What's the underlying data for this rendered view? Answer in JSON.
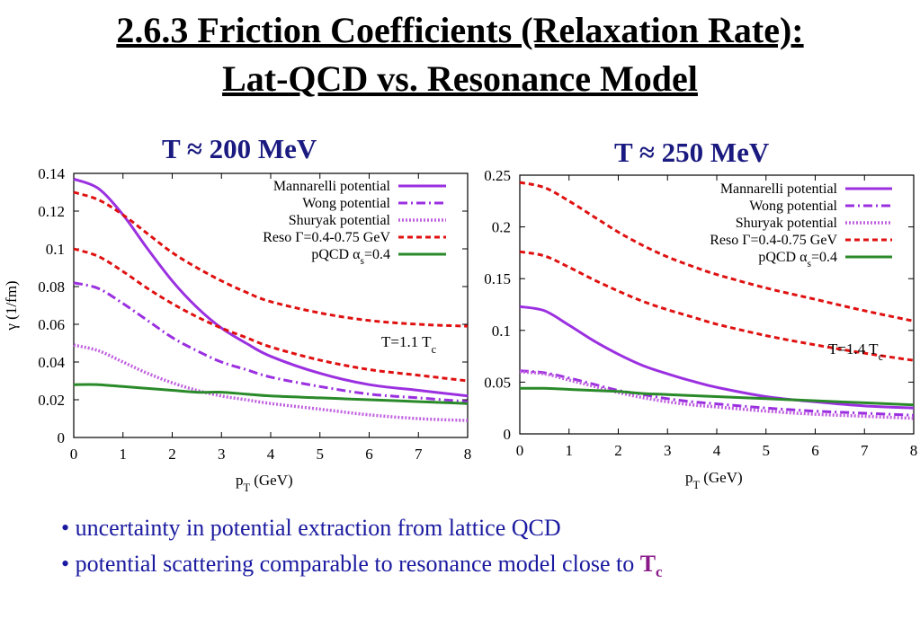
{
  "title": {
    "line1": "2.6.3 Friction Coefficients (Relaxation Rate):",
    "line2": "Lat-QCD vs. Resonance Model"
  },
  "bullets": [
    {
      "text": "• uncertainty in potential extraction from lattice QCD"
    },
    {
      "text": "• potential scattering comparable to resonance model close to ",
      "tail_main": "T",
      "tail_sub": "c"
    }
  ],
  "legend_labels": [
    {
      "main": "Mannarelli potential",
      "sub": "",
      "after": ""
    },
    {
      "main": "Wong potential",
      "sub": "",
      "after": ""
    },
    {
      "main": "Shuryak potential",
      "sub": "",
      "after": ""
    },
    {
      "main": "Reso Γ=0.4-0.75 GeV",
      "sub": "",
      "after": ""
    },
    {
      "main": "pQCD α",
      "sub": "s",
      "after": "=0.4"
    }
  ],
  "styles": {
    "Mannarelli potential": {
      "color": "#9b30e0",
      "dash": "",
      "width": 3
    },
    "Wong potential": {
      "color": "#9b30e0",
      "dash": "10,4,2,4",
      "width": 3
    },
    "Shuryak potential": {
      "color": "#c060e0",
      "dash": "2,2",
      "width": 3.5
    },
    "Reso": {
      "color": "#e01010",
      "dash": "6,4",
      "width": 3
    },
    "pQCD": {
      "color": "#2a8a2a",
      "dash": "",
      "width": 3
    }
  },
  "chart_data": [
    {
      "type": "line",
      "panel_label": "T ≈ 200 MeV",
      "annotation": {
        "main": "T=1.1 T",
        "sub": "c"
      },
      "xlabel": {
        "main": "p",
        "sub": "T",
        "after": " (GeV)"
      },
      "ylabel": "γ (1/fm)",
      "xlim": [
        0,
        8
      ],
      "ylim": [
        0,
        0.14
      ],
      "xticks": [
        0,
        1,
        2,
        3,
        4,
        5,
        6,
        7,
        8
      ],
      "xtick_labels": [
        "0",
        "1",
        "2",
        "3",
        "4",
        "5",
        "6",
        "7",
        "8"
      ],
      "yticks": [
        0,
        0.02,
        0.04,
        0.06,
        0.08,
        0.1,
        0.12,
        0.14
      ],
      "ytick_labels": [
        "0",
        "0.02",
        "0.04",
        "0.06",
        "0.08",
        "0.1",
        "0.12",
        "0.14"
      ],
      "x": [
        0,
        0.5,
        1,
        1.5,
        2,
        2.5,
        3,
        3.5,
        4,
        5,
        6,
        7,
        8
      ],
      "series": [
        {
          "style": "Mannarelli potential",
          "values": [
            0.137,
            0.132,
            0.118,
            0.1,
            0.083,
            0.069,
            0.058,
            0.05,
            0.043,
            0.034,
            0.028,
            0.025,
            0.022
          ]
        },
        {
          "style": "Wong potential",
          "values": [
            0.082,
            0.079,
            0.071,
            0.062,
            0.053,
            0.046,
            0.04,
            0.036,
            0.032,
            0.027,
            0.023,
            0.021,
            0.019
          ]
        },
        {
          "style": "Shuryak potential",
          "values": [
            0.049,
            0.046,
            0.04,
            0.034,
            0.029,
            0.025,
            0.022,
            0.02,
            0.018,
            0.015,
            0.012,
            0.01,
            0.009
          ]
        },
        {
          "style": "Reso",
          "values": [
            0.13,
            0.126,
            0.118,
            0.108,
            0.098,
            0.09,
            0.083,
            0.077,
            0.072,
            0.066,
            0.062,
            0.06,
            0.059
          ]
        },
        {
          "style": "Reso",
          "values": [
            0.1,
            0.096,
            0.088,
            0.079,
            0.071,
            0.064,
            0.058,
            0.053,
            0.048,
            0.041,
            0.036,
            0.033,
            0.03
          ]
        },
        {
          "style": "pQCD",
          "values": [
            0.028,
            0.028,
            0.027,
            0.026,
            0.025,
            0.024,
            0.024,
            0.023,
            0.022,
            0.021,
            0.02,
            0.019,
            0.018
          ]
        }
      ]
    },
    {
      "type": "line",
      "panel_label": "T ≈ 250 MeV",
      "annotation": {
        "main": "T=1.4 T",
        "sub": "c"
      },
      "xlabel": {
        "main": "p",
        "sub": "T",
        "after": " (GeV)"
      },
      "ylabel": "",
      "xlim": [
        0,
        8
      ],
      "ylim": [
        0,
        0.25
      ],
      "xticks": [
        0,
        1,
        2,
        3,
        4,
        5,
        6,
        7,
        8
      ],
      "xtick_labels": [
        "0",
        "1",
        "2",
        "3",
        "4",
        "5",
        "6",
        "7",
        "8"
      ],
      "yticks": [
        0,
        0.05,
        0.1,
        0.15,
        0.2,
        0.25
      ],
      "ytick_labels": [
        "0",
        "0.05",
        "0.1",
        "0.15",
        "0.2",
        "0.25"
      ],
      "x": [
        0,
        0.5,
        1,
        1.5,
        2,
        2.5,
        3,
        3.5,
        4,
        5,
        6,
        7,
        8
      ],
      "series": [
        {
          "style": "Mannarelli potential",
          "values": [
            0.123,
            0.119,
            0.105,
            0.09,
            0.077,
            0.066,
            0.058,
            0.051,
            0.045,
            0.036,
            0.031,
            0.027,
            0.025
          ]
        },
        {
          "style": "Wong potential",
          "values": [
            0.061,
            0.059,
            0.054,
            0.048,
            0.042,
            0.038,
            0.034,
            0.031,
            0.029,
            0.025,
            0.022,
            0.02,
            0.018
          ]
        },
        {
          "style": "Shuryak potential",
          "values": [
            0.06,
            0.058,
            0.052,
            0.046,
            0.04,
            0.035,
            0.031,
            0.028,
            0.026,
            0.022,
            0.019,
            0.017,
            0.015
          ]
        },
        {
          "style": "Reso",
          "values": [
            0.243,
            0.238,
            0.225,
            0.21,
            0.195,
            0.182,
            0.171,
            0.162,
            0.154,
            0.141,
            0.13,
            0.119,
            0.109
          ]
        },
        {
          "style": "Reso",
          "values": [
            0.176,
            0.172,
            0.161,
            0.149,
            0.138,
            0.128,
            0.12,
            0.113,
            0.106,
            0.095,
            0.086,
            0.078,
            0.071
          ]
        },
        {
          "style": "pQCD",
          "values": [
            0.044,
            0.044,
            0.043,
            0.042,
            0.041,
            0.039,
            0.038,
            0.037,
            0.036,
            0.034,
            0.032,
            0.03,
            0.028
          ]
        }
      ]
    }
  ]
}
